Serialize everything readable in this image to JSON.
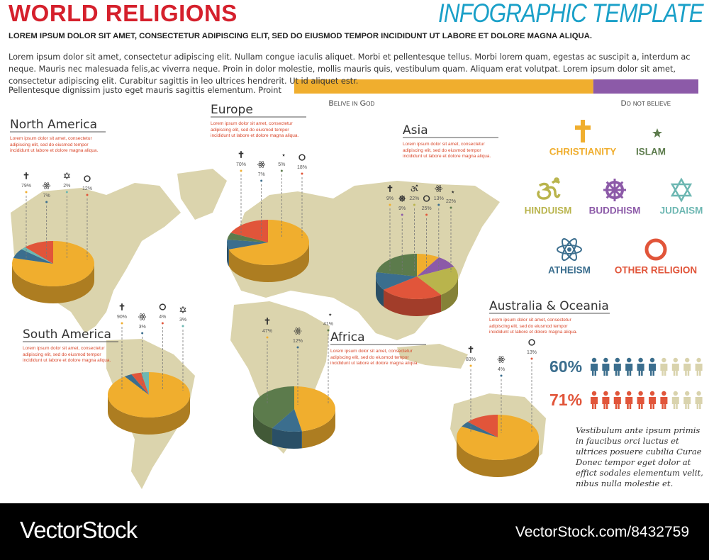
{
  "header": {
    "title": "WORLD RELIGIONS",
    "badge": "INFOGRAPHIC TEMPLATE",
    "subtitle": "LOREM IPSUM DOLOR SIT AMET, CONSECTETUR ADIPISCING ELIT, SED DO EIUSMOD TEMPOR INCIDIDUNT UT LABORE ET DOLORE MAGNA ALIQUA.",
    "paragraph": "Lorem ipsum dolor sit amet, consectetur adipiscing elit. Nullam congue iaculis aliquet. Morbi et pellentesque tellus. Morbi lorem quam, egestas ac suscipit a, interdum ac neque. Mauris nec malesuada felis,ac viverra neque. Proin in dolor molestie, mollis mauris quis, vestibulum quam. Aliquam erat volutpat. Lorem ipsum dolor sit amet, consectetur adipiscing elit. Curabitur sagittis in leo ultrices hendrerit. Ut id aliquet estr.",
    "paragraph_end": "Pellentesque dignissim justo eget mauris sagittis elementum. Proint"
  },
  "legend": [
    {
      "name": "CHRISTIANITY",
      "color": "#f0ae2e"
    },
    {
      "name": "ISLAM",
      "color": "#5c7b4c"
    },
    {
      "name": "HINDUISM",
      "color": "#b9b44c"
    },
    {
      "name": "BUDDHISM",
      "color": "#8c5aa8"
    },
    {
      "name": "JUDAISM",
      "color": "#6db7b2"
    },
    {
      "name": "ATHEISM",
      "color": "#3b6e8e"
    },
    {
      "name": "OTHER RELIGION",
      "color": "#e1553a"
    }
  ],
  "chart_data": [
    {
      "type": "pie",
      "title": "North America",
      "description": "Lorem ipsum dolor sit amet, consectetur adipiscing elit, sed do eiusmod tempor incididunt ut labore et dolore magna aliqua.",
      "categories": [
        "CHRISTIANITY",
        "ATHEISM",
        "JUDAISM",
        "OTHER RELIGION"
      ],
      "values": [
        79,
        7,
        2,
        12
      ],
      "value_labels": [
        "79%",
        "7%",
        "2%",
        "12%"
      ]
    },
    {
      "type": "pie",
      "title": "Europe",
      "description": "Lorem ipsum dolor sit amet, consectetur adipiscing elit, sed do eiusmod tempor incididunt ut labore et dolore magna aliqua.",
      "categories": [
        "CHRISTIANITY",
        "ATHEISM",
        "ISLAM",
        "OTHER RELIGION"
      ],
      "values": [
        70,
        7,
        5,
        18
      ],
      "value_labels": [
        "70%",
        "7%",
        "5%",
        "18%"
      ]
    },
    {
      "type": "pie",
      "title": "Asia",
      "description": "Lorem ipsum dolor sit amet, consectetur adipiscing elit, sed do eiusmod tempor incididunt ut labore et dolore magna aliqua.",
      "categories": [
        "CHRISTIANITY",
        "BUDDHISM",
        "HINDUISM",
        "OTHER RELIGION",
        "ATHEISM",
        "ISLAM"
      ],
      "values": [
        9,
        9,
        22,
        25,
        13,
        22
      ],
      "value_labels": [
        "9%",
        "9%",
        "22%",
        "25%",
        "13%",
        "22%"
      ]
    },
    {
      "type": "pie",
      "title": "South America",
      "description": "Lorem ipsum dolor sit amet, consectetur adipiscing elit, sed do eiusmod tempor incididunt ut labore et dolore magna aliqua.",
      "categories": [
        "CHRISTIANITY",
        "ATHEISM",
        "OTHER RELIGION",
        "JUDAISM"
      ],
      "values": [
        90,
        3,
        4,
        3
      ],
      "value_labels": [
        "90%",
        "3%",
        "4%",
        "3%"
      ]
    },
    {
      "type": "pie",
      "title": "Africa",
      "description": "Lorem ipsum dolor sit amet, consectetur adipiscing elit, sed do eiusmod tempor incididunt ut labore et dolore magna aliqua.",
      "categories": [
        "CHRISTIANITY",
        "ATHEISM",
        "ISLAM"
      ],
      "values": [
        47,
        12,
        41
      ],
      "value_labels": [
        "47%",
        "12%",
        "41%"
      ]
    },
    {
      "type": "pie",
      "title": "Australia & Oceania",
      "description": "Lorem ipsum dolor sit amet, consectetur adipiscing elit, sed do eiusmod tempor incididunt ut labore et dolore magna aliqua.",
      "categories": [
        "CHRISTIANITY",
        "ATHEISM",
        "OTHER RELIGION"
      ],
      "values": [
        83,
        4,
        13
      ],
      "value_labels": [
        "83%",
        "4%",
        "13%"
      ]
    },
    {
      "type": "stacked-bar",
      "xlim": [
        0,
        100
      ],
      "series": [
        {
          "name": "Belive in God",
          "color": "#f0ae2e",
          "values": [
            74
          ]
        },
        {
          "name": "Do not believe",
          "color": "#8c5aa8",
          "values": [
            26
          ]
        }
      ]
    },
    {
      "type": "people",
      "series": [
        {
          "name": "60%",
          "value": 60,
          "color": "#3b6e8e",
          "base_color": "#d9d3ad"
        },
        {
          "name": "71%",
          "value": 71,
          "color": "#e1553a",
          "base_color": "#d9d3ad"
        }
      ]
    }
  ],
  "note": "Vestibulum ante ipsum primis in faucibus orci luctus et ultrices posuere cubilia Curae Donec tempor eget dolor at effict sodales elementum velit, nibus nulla molestie et.",
  "footer": {
    "brand": "VectorStock",
    "id": "VectorStock.com/8432759"
  }
}
